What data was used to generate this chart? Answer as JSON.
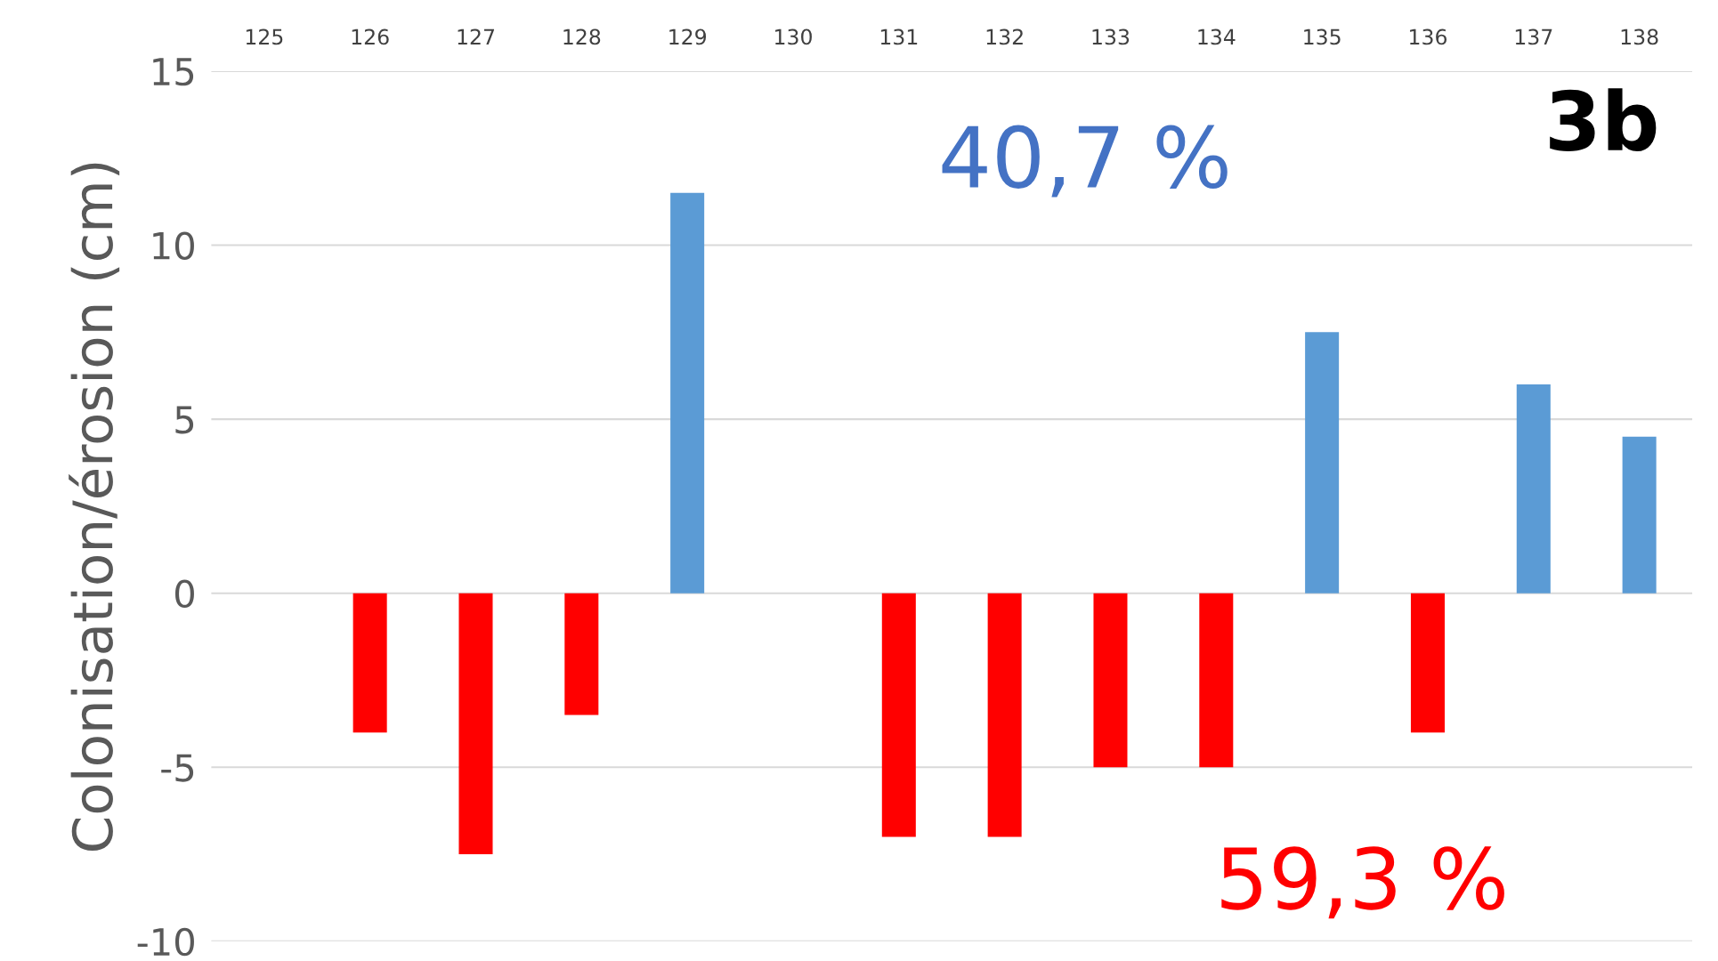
{
  "chart_data": {
    "type": "bar",
    "ylabel": "Colonisation/érosion (cm)",
    "categories": [
      "125",
      "126",
      "127",
      "128",
      "129",
      "130",
      "131",
      "132",
      "133",
      "134",
      "135",
      "136",
      "137",
      "138"
    ],
    "values": [
      null,
      -4,
      -7.5,
      -3.5,
      11.5,
      null,
      -7,
      -7,
      -5,
      -5,
      7.5,
      -4,
      6,
      4.5
    ],
    "colors": [
      "#5b9bd5",
      "#ff0000",
      "#ff0000",
      "#ff0000",
      "#5b9bd5",
      "#5b9bd5",
      "#ff0000",
      "#ff0000",
      "#ff0000",
      "#ff0000",
      "#5b9bd5",
      "#ff0000",
      "#5b9bd5",
      "#5b9bd5"
    ],
    "ylim": [
      -10,
      15
    ],
    "yticks": [
      -10,
      -5,
      0,
      5,
      10,
      15
    ],
    "grid": "y",
    "annotations": [
      "40,7 %",
      "59,3 %",
      "3b"
    ]
  }
}
